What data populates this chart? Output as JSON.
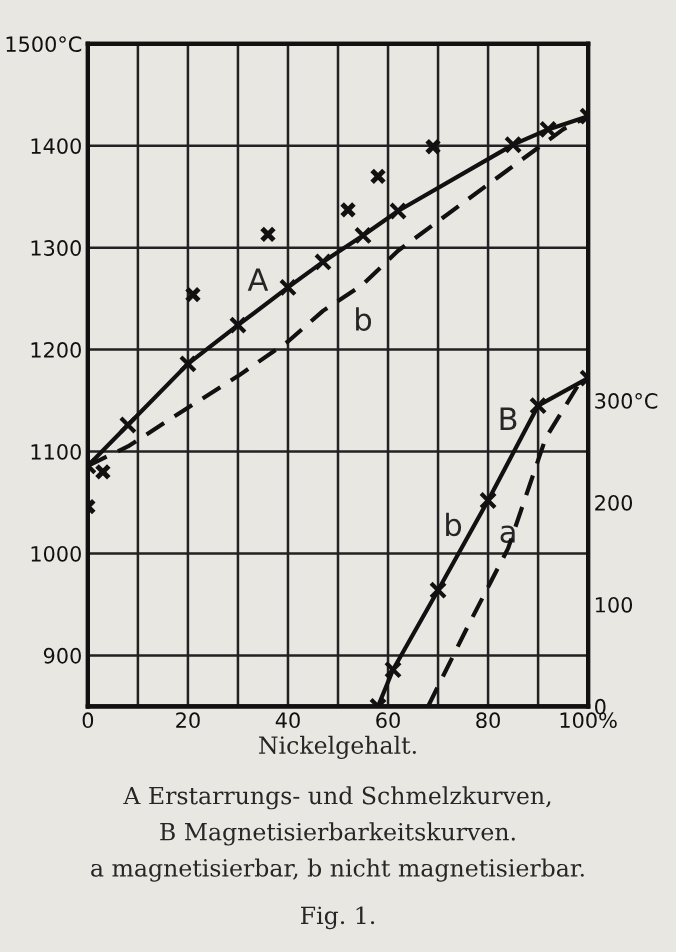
{
  "chart_data": {
    "type": "line",
    "xlabel": "Nickelgehalt.",
    "xlim": [
      0,
      100
    ],
    "xticks": [
      0,
      {
        "value": 10,
        "label": null
      },
      20,
      {
        "value": 30,
        "label": null
      },
      40,
      {
        "value": 50,
        "label": null
      },
      60,
      {
        "value": 70,
        "label": null
      },
      80,
      {
        "value": 90,
        "label": null
      },
      {
        "value": 100,
        "label": "100%"
      }
    ],
    "ylim": [
      850,
      1500
    ],
    "yticks": [
      900,
      1000,
      1100,
      1200,
      1300,
      1400,
      {
        "value": 1500,
        "label": "1500°C"
      }
    ],
    "y2lim": [
      0,
      650
    ],
    "y2ticks": [
      0,
      100,
      200,
      {
        "value": 300,
        "label": "300°C"
      }
    ],
    "grid": true,
    "series": [
      {
        "color": "#111111",
        "line_style": "solid",
        "marker": "cross",
        "x": [
          0,
          8,
          20,
          30,
          40,
          47,
          55,
          62,
          85,
          92,
          100
        ],
        "values": [
          1086,
          1126,
          1186,
          1224,
          1261,
          1286,
          1312,
          1336,
          1401,
          1416,
          1429
        ]
      },
      {
        "color": "#111111",
        "line_style": "dashed",
        "marker": "none",
        "x": [
          0,
          8,
          20,
          30,
          40,
          47,
          55,
          62,
          85,
          95,
          100
        ],
        "values": [
          1086,
          1105,
          1143,
          1174,
          1208,
          1238,
          1264,
          1297,
          1380,
          1416,
          1429
        ]
      },
      {
        "type": "scatter",
        "color": "#111111",
        "marker": "cross",
        "x": [
          0,
          3,
          21,
          36,
          52,
          58,
          69
        ],
        "values": [
          1046,
          1080,
          1254,
          1313,
          1337,
          1370,
          1399
        ]
      },
      {
        "axis": "y2",
        "color": "#111111",
        "line_style": "solid",
        "marker": "cross",
        "x": [
          58,
          61,
          70,
          80,
          90,
          100
        ],
        "values": [
          0,
          36,
          114,
          202,
          295,
          322
        ]
      },
      {
        "axis": "y2",
        "color": "#111111",
        "line_style": "dashed",
        "marker": "none",
        "x": [
          68,
          76,
          84,
          91.5,
          98,
          100
        ],
        "values": [
          0,
          79,
          155,
          263,
          315,
          322
        ]
      }
    ],
    "annotations": [
      "A",
      "b",
      "B",
      "b",
      "a",
      "A Erstarrungs- und Schmelzkurven,",
      "B Magnetisierbarkeitskurven.",
      "a magnetisierbar, b nicht magnetisierbar.",
      "Fig. 1."
    ]
  }
}
